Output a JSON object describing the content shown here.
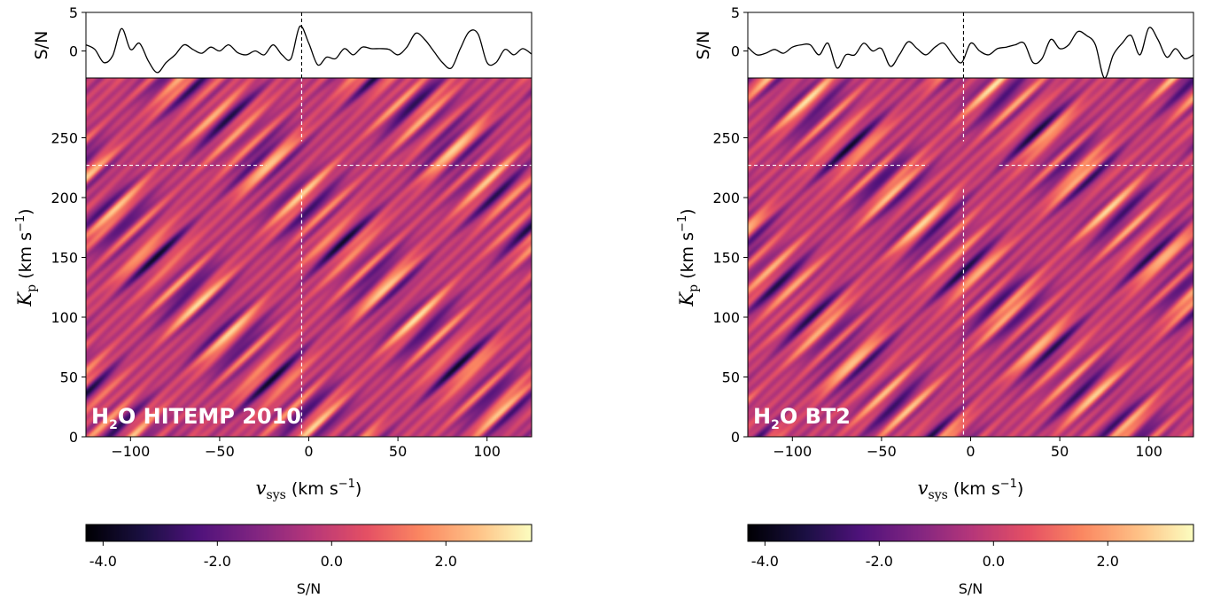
{
  "chart_data": [
    {
      "type": "heatmap",
      "panel_label": {
        "pre": "H",
        "sub": "2",
        "post": "O HITEMP 2010"
      },
      "x_axis": {
        "var": "v",
        "sub": "sys",
        "unit_pre": "(km s",
        "unit_sup": "−1",
        "unit_post": ")",
        "range": [
          -125,
          125
        ],
        "ticks": [
          -100,
          -50,
          0,
          50,
          100
        ],
        "tick_labels": [
          "−100",
          "−50",
          "0",
          "50",
          "100"
        ]
      },
      "y_axis": {
        "var": "K",
        "sub": "p",
        "unit_pre": "(km s",
        "unit_sup": "−1",
        "unit_post": ")",
        "range": [
          0,
          300
        ],
        "ticks": [
          0,
          50,
          100,
          150,
          200,
          250
        ],
        "tick_labels": [
          "0",
          "50",
          "100",
          "150",
          "200",
          "250"
        ]
      },
      "markers": {
        "vsys": -4,
        "kp": 227
      },
      "top_panel": {
        "ylabel": "S/N",
        "ylim": [
          -3.5,
          5
        ],
        "ticks": [
          0,
          5
        ],
        "tick_labels": [
          "0",
          "5"
        ],
        "x": [
          -125,
          -120,
          -115,
          -110,
          -105,
          -100,
          -95,
          -90,
          -85,
          -80,
          -75,
          -70,
          -65,
          -60,
          -55,
          -50,
          -45,
          -40,
          -35,
          -30,
          -25,
          -20,
          -15,
          -10,
          -5,
          0,
          5,
          10,
          15,
          20,
          25,
          30,
          35,
          40,
          45,
          50,
          55,
          60,
          65,
          70,
          75,
          80,
          85,
          90,
          95,
          100,
          105,
          110,
          115,
          120,
          125
        ],
        "sn": [
          0.8,
          0.2,
          -1.5,
          -0.6,
          2.9,
          0.2,
          1.0,
          -1.3,
          -2.8,
          -1.5,
          -0.5,
          0.8,
          0.2,
          -0.3,
          0.5,
          0.0,
          0.8,
          -0.2,
          -0.5,
          0.0,
          -0.5,
          0.8,
          -0.5,
          -1.0,
          3.2,
          1.0,
          -1.8,
          -0.8,
          -1.0,
          0.3,
          -0.5,
          0.5,
          0.3,
          0.3,
          0.2,
          -0.5,
          0.5,
          2.3,
          1.5,
          0.0,
          -1.5,
          -2.2,
          0.3,
          2.5,
          2.2,
          -1.5,
          -1.5,
          0.2,
          -0.5,
          0.3,
          -0.4
        ]
      },
      "colorbar": {
        "label": "S/N",
        "range": [
          -4.3,
          3.5
        ],
        "ticks": [
          -4,
          -2,
          0,
          2
        ],
        "tick_labels": [
          "-4.0",
          "-2.0",
          "0.0",
          "2.0"
        ]
      }
    },
    {
      "type": "heatmap",
      "panel_label": {
        "pre": "H",
        "sub": "2",
        "post": "O BT2"
      },
      "x_axis": {
        "var": "v",
        "sub": "sys",
        "unit_pre": "(km s",
        "unit_sup": "−1",
        "unit_post": ")",
        "range": [
          -125,
          125
        ],
        "ticks": [
          -100,
          -50,
          0,
          50,
          100
        ],
        "tick_labels": [
          "−100",
          "−50",
          "0",
          "50",
          "100"
        ]
      },
      "y_axis": {
        "var": "K",
        "sub": "p",
        "unit_pre": "(km s",
        "unit_sup": "−1",
        "unit_post": ")",
        "range": [
          0,
          300
        ],
        "ticks": [
          0,
          50,
          100,
          150,
          200,
          250
        ],
        "tick_labels": [
          "0",
          "50",
          "100",
          "150",
          "200",
          "250"
        ]
      },
      "markers": {
        "vsys": -4,
        "kp": 227
      },
      "top_panel": {
        "ylabel": "S/N",
        "ylim": [
          -3.5,
          5
        ],
        "ticks": [
          0,
          5
        ],
        "tick_labels": [
          "0",
          "5"
        ],
        "x": [
          -125,
          -120,
          -115,
          -110,
          -105,
          -100,
          -95,
          -90,
          -85,
          -80,
          -75,
          -70,
          -65,
          -60,
          -55,
          -50,
          -45,
          -40,
          -35,
          -30,
          -25,
          -20,
          -15,
          -10,
          -5,
          0,
          5,
          10,
          15,
          20,
          25,
          30,
          35,
          40,
          45,
          50,
          55,
          60,
          65,
          70,
          75,
          80,
          85,
          90,
          95,
          100,
          105,
          110,
          115,
          120,
          125
        ],
        "sn": [
          0.5,
          -0.5,
          -0.3,
          0.2,
          -0.3,
          0.5,
          0.8,
          0.8,
          -0.5,
          1.0,
          -2.2,
          -0.5,
          -0.5,
          1.0,
          0.0,
          0.3,
          -2.0,
          -0.5,
          1.2,
          0.3,
          -0.5,
          0.5,
          1.0,
          -0.5,
          -1.5,
          1.0,
          0.0,
          -0.5,
          0.3,
          0.5,
          0.8,
          1.0,
          -1.5,
          -1.0,
          1.5,
          0.3,
          0.8,
          2.5,
          2.0,
          0.8,
          -3.5,
          -0.5,
          1.0,
          2.0,
          -0.5,
          3.0,
          1.5,
          -0.8,
          0.3,
          -1.0,
          -0.5
        ]
      },
      "colorbar": {
        "label": "S/N",
        "range": [
          -4.3,
          3.5
        ],
        "ticks": [
          -4,
          -2,
          0,
          2
        ],
        "tick_labels": [
          "-4.0",
          "-2.0",
          "0.0",
          "2.0"
        ]
      }
    }
  ]
}
